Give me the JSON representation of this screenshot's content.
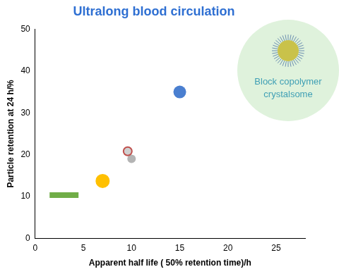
{
  "chart_data": {
    "type": "scatter",
    "title": "Ultralong blood circulation",
    "x_label": "Apparent half life ( 50% retention time)/h",
    "y_label": "Particle retention at 24 h/%",
    "annotation": "Block copolymer crystalsome",
    "xlim": [
      0,
      28
    ],
    "xticks": [
      0,
      5,
      10,
      15,
      20,
      25
    ],
    "ylim": [
      0,
      50
    ],
    "yticks": [
      0,
      10,
      20,
      30,
      40,
      50
    ],
    "grid": false,
    "series": [
      {
        "type": "line",
        "color": "#70ad47",
        "x": [
          1.5,
          4.5
        ],
        "values": [
          10.3,
          10.3
        ]
      },
      {
        "color": "#ffc000",
        "x": [
          7
        ],
        "values": [
          13.7
        ]
      },
      {
        "color": "#c0504d",
        "marker": "ring",
        "x": [
          9.6
        ],
        "values": [
          20.8
        ]
      },
      {
        "color": "#b4b4b4",
        "x": [
          10
        ],
        "values": [
          19
        ]
      },
      {
        "color": "#4a7fd0",
        "x": [
          15
        ],
        "values": [
          35
        ]
      }
    ]
  }
}
